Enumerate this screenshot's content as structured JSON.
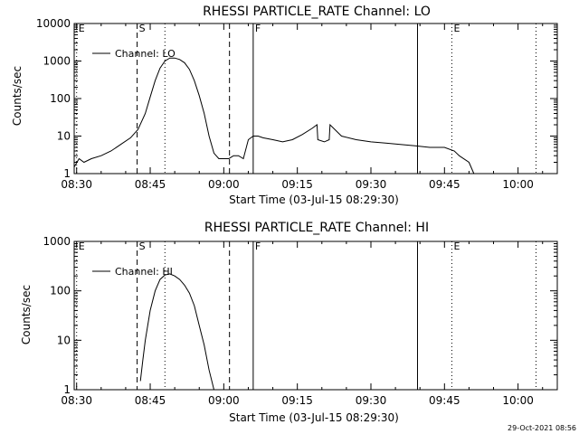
{
  "footer_timestamp": "29-Oct-2021 08:56",
  "chart_data": [
    {
      "type": "line",
      "title": "RHESSI PARTICLE_RATE Channel: LO",
      "xlabel": "Start Time (03-Jul-15 08:29:30)",
      "ylabel": "Counts/sec",
      "yscale": "log",
      "xlim": [
        "08:29:30",
        "10:08:00"
      ],
      "ylim": [
        1,
        10000
      ],
      "x_ticks": [
        "08:30",
        "08:45",
        "09:00",
        "09:15",
        "09:30",
        "09:45",
        "10:00"
      ],
      "y_ticks": [
        "1",
        "10",
        "100",
        "1000",
        "10000"
      ],
      "legend": "Channel: LO",
      "legend_position": "top-left",
      "markers": [
        {
          "label": "E",
          "time": "08:30:00",
          "style": "dotted"
        },
        {
          "label": "S",
          "time": "08:42:20",
          "style": "dashed"
        },
        {
          "label": "",
          "time": "08:48:00",
          "style": "dotted"
        },
        {
          "label": "",
          "time": "09:01:10",
          "style": "dashed"
        },
        {
          "label": "F",
          "time": "09:06:00",
          "style": "solid"
        },
        {
          "label": "",
          "time": "09:39:30",
          "style": "solid"
        },
        {
          "label": "E",
          "time": "09:46:30",
          "style": "dotted"
        },
        {
          "label": "",
          "time": "10:03:40",
          "style": "dotted"
        }
      ],
      "series": [
        {
          "name": "Channel: LO",
          "x": [
            "08:29:30",
            "08:30:30",
            "08:31:30",
            "08:33:00",
            "08:35:00",
            "08:37:00",
            "08:39:00",
            "08:41:00",
            "08:42:30",
            "08:44:00",
            "08:45:00",
            "08:46:00",
            "08:47:00",
            "08:48:00",
            "08:49:00",
            "08:50:00",
            "08:51:00",
            "08:52:00",
            "08:53:00",
            "08:54:00",
            "08:55:00",
            "08:56:00",
            "08:57:00",
            "08:58:00",
            "08:59:00",
            "09:00:00",
            "09:01:00",
            "09:02:00",
            "09:03:00",
            "09:04:00",
            "09:05:00",
            "09:06:00",
            "09:07:00",
            "09:08:00",
            "09:10:00",
            "09:12:00",
            "09:14:00",
            "09:16:00",
            "09:18:00",
            "09:19:00",
            "09:19:10",
            "09:20:30",
            "09:21:30",
            "09:21:40",
            "09:24:00",
            "09:27:00",
            "09:30:00",
            "09:33:00",
            "09:36:00",
            "09:39:00",
            "09:42:00",
            "09:45:00",
            "09:47:00",
            "09:48:00",
            "09:50:00",
            "09:51:00"
          ],
          "values": [
            1.5,
            2.5,
            2.0,
            2.5,
            3.0,
            4.0,
            6.0,
            9.0,
            15,
            40,
            110,
            300,
            650,
            1000,
            1200,
            1200,
            1100,
            900,
            600,
            300,
            120,
            40,
            10,
            3.5,
            2.5,
            2.5,
            2.5,
            3.0,
            3.0,
            2.5,
            8.0,
            10,
            10,
            9.0,
            8.0,
            7.0,
            8.0,
            11,
            16,
            20,
            8.0,
            7.0,
            8.0,
            20,
            10,
            8.0,
            7.0,
            6.5,
            6.0,
            5.5,
            5.0,
            5.0,
            4.0,
            3.0,
            2.0,
            1.0
          ]
        }
      ]
    },
    {
      "type": "line",
      "title": "RHESSI PARTICLE_RATE Channel: HI",
      "xlabel": "Start Time (03-Jul-15 08:29:30)",
      "ylabel": "Counts/sec",
      "yscale": "log",
      "xlim": [
        "08:29:30",
        "10:08:00"
      ],
      "ylim": [
        1,
        1000
      ],
      "x_ticks": [
        "08:30",
        "08:45",
        "09:00",
        "09:15",
        "09:30",
        "09:45",
        "10:00"
      ],
      "y_ticks": [
        "1",
        "10",
        "100",
        "1000"
      ],
      "legend": "Channel: HI",
      "legend_position": "top-left",
      "markers": [
        {
          "label": "E",
          "time": "08:30:00",
          "style": "dotted"
        },
        {
          "label": "S",
          "time": "08:42:20",
          "style": "dashed"
        },
        {
          "label": "",
          "time": "08:48:00",
          "style": "dotted"
        },
        {
          "label": "",
          "time": "09:01:10",
          "style": "dashed"
        },
        {
          "label": "F",
          "time": "09:06:00",
          "style": "solid"
        },
        {
          "label": "",
          "time": "09:39:30",
          "style": "solid"
        },
        {
          "label": "E",
          "time": "09:46:30",
          "style": "dotted"
        },
        {
          "label": "",
          "time": "10:03:40",
          "style": "dotted"
        }
      ],
      "series": [
        {
          "name": "Channel: HI",
          "x": [
            "08:43:00",
            "08:43:30",
            "08:44:00",
            "08:45:00",
            "08:46:00",
            "08:47:00",
            "08:48:00",
            "08:49:00",
            "08:50:00",
            "08:51:00",
            "08:52:00",
            "08:53:00",
            "08:54:00",
            "08:55:00",
            "08:56:00",
            "08:57:00",
            "08:58:00"
          ],
          "values": [
            1.5,
            4,
            10,
            40,
            100,
            170,
            210,
            220,
            200,
            170,
            130,
            90,
            50,
            20,
            8,
            2.5,
            1
          ]
        }
      ]
    }
  ]
}
